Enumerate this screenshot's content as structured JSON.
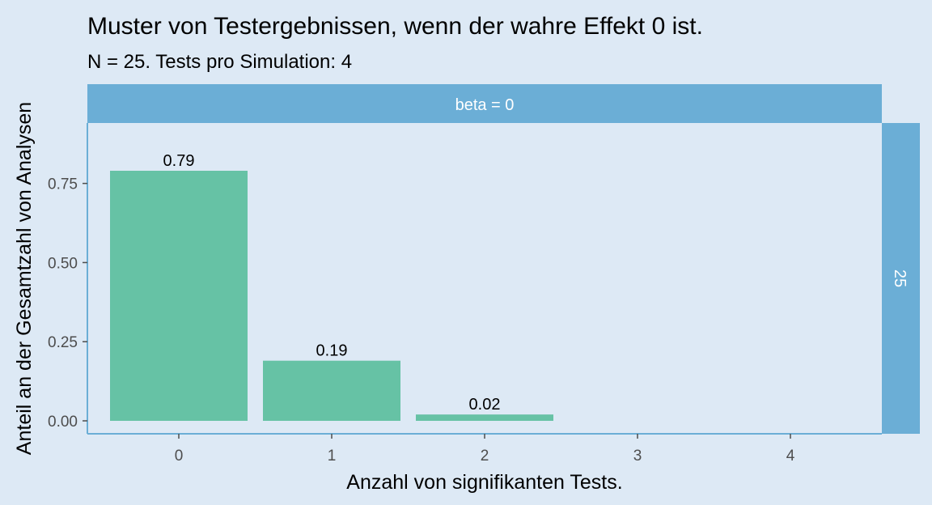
{
  "chart_data": {
    "type": "bar",
    "title": "Muster von Testergebnissen, wenn der wahre Effekt 0 ist.",
    "subtitle": "N = 25. Tests pro Simulation: 4",
    "xlabel": "Anzahl von signifikanten Tests.",
    "ylabel": "Anteil an der Gesamtzahl von Analysen",
    "categories": [
      "0",
      "1",
      "2",
      "3",
      "4"
    ],
    "values": [
      0.79,
      0.19,
      0.02,
      0,
      0
    ],
    "data_labels": [
      "0.79",
      "0.19",
      "0.02",
      "",
      ""
    ],
    "ylim": [
      0,
      0.95
    ],
    "yticks": [
      0,
      0.25,
      0.5,
      0.75
    ],
    "ytick_labels": [
      "0.00",
      "0.25",
      "0.50",
      "0.75"
    ],
    "facet_top": "beta = 0",
    "facet_right": "25",
    "grid": false,
    "legend": "none",
    "colors": {
      "bar": "#66c2a5",
      "strip": "#6baed6",
      "background": "#dde9f5",
      "axis": "#6baed6"
    }
  }
}
